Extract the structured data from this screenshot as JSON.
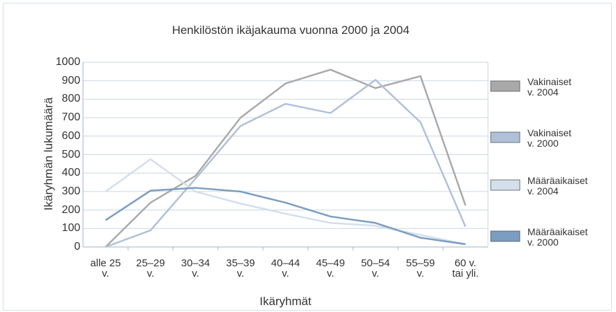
{
  "chart_data": {
    "type": "line",
    "title": "Henkilöstön ikäjakauma vuonna 2000 ja 2004",
    "x_label": "Ikäryhmät",
    "y_label": "Ikäryhmän lukumäärä",
    "categories": [
      "alle 25\nv.",
      "25–29\nv.",
      "30–34\nv.",
      "35–39\nv.",
      "40–44\nv.",
      "45–49\nv.",
      "50–54\nv.",
      "55–59\nv.",
      "60 v.\ntai yli."
    ],
    "series": [
      {
        "name": "Vakinaiset\nv. 2004",
        "color": "#a9a9a9",
        "values": [
          0,
          240,
          385,
          700,
          885,
          960,
          860,
          925,
          225
        ]
      },
      {
        "name": "Vakinaiset\nv. 2000",
        "color": "#afc1d9",
        "values": [
          0,
          90,
          370,
          655,
          775,
          725,
          905,
          675,
          110
        ]
      },
      {
        "name": "Määräaikaiset\nv. 2004",
        "color": "#d3dfeb",
        "values": [
          300,
          475,
          300,
          235,
          180,
          130,
          115,
          65,
          15
        ]
      },
      {
        "name": "Määräaikaiset\nv. 2000",
        "color": "#7b9dc0",
        "values": [
          145,
          305,
          320,
          300,
          240,
          165,
          130,
          50,
          15
        ]
      }
    ],
    "ylim": [
      0,
      1000
    ],
    "yticks": [
      0,
      100,
      200,
      300,
      400,
      500,
      600,
      700,
      800,
      900,
      1000
    ],
    "grid": true,
    "legend": "right"
  }
}
